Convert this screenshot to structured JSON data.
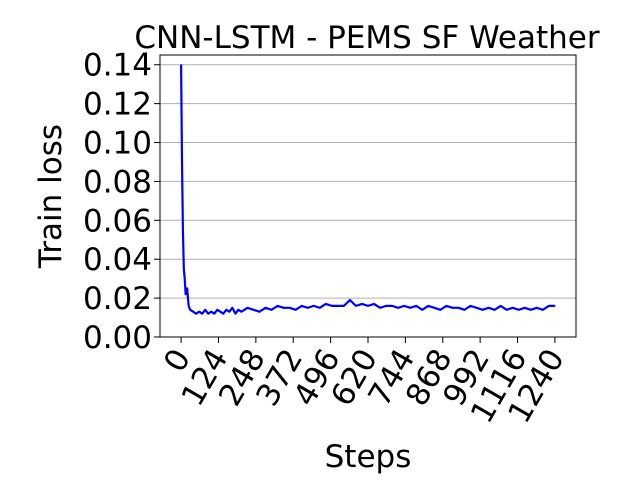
{
  "chart_data": {
    "type": "line",
    "title": "CNN-LSTM - PEMS SF Weather",
    "xlabel": "Steps",
    "ylabel": "Train loss",
    "xlim": [
      -70,
      1310
    ],
    "ylim": [
      0.0,
      0.145
    ],
    "x_ticks": [
      0,
      124,
      248,
      372,
      496,
      620,
      744,
      868,
      992,
      1116,
      1240
    ],
    "x_tick_labels": [
      "0",
      "124",
      "248",
      "372",
      "496",
      "620",
      "744",
      "868",
      "992",
      "1116",
      "1240"
    ],
    "y_ticks": [
      0.0,
      0.02,
      0.04,
      0.06,
      0.08,
      0.1,
      0.12,
      0.14
    ],
    "y_tick_labels": [
      "0.00",
      "0.02",
      "0.04",
      "0.06",
      "0.08",
      "0.10",
      "0.12",
      "0.14"
    ],
    "grid": "horizontal",
    "colors": {
      "line": "#0000ff"
    },
    "series": [
      {
        "color": "#0000ff",
        "x": [
          0,
          3,
          6,
          9,
          12,
          15,
          20,
          25,
          30,
          40,
          50,
          60,
          70,
          80,
          90,
          100,
          110,
          120,
          130,
          140,
          150,
          160,
          170,
          180,
          190,
          200,
          220,
          240,
          260,
          280,
          300,
          320,
          340,
          360,
          380,
          400,
          420,
          440,
          460,
          480,
          500,
          520,
          540,
          560,
          580,
          600,
          620,
          640,
          660,
          680,
          700,
          720,
          740,
          760,
          780,
          800,
          820,
          840,
          860,
          880,
          900,
          920,
          940,
          960,
          980,
          1000,
          1020,
          1040,
          1060,
          1080,
          1100,
          1120,
          1140,
          1160,
          1180,
          1200,
          1220,
          1240
        ],
        "y": [
          0.14,
          0.09,
          0.055,
          0.035,
          0.03,
          0.022,
          0.025,
          0.016,
          0.014,
          0.013,
          0.012,
          0.013,
          0.012,
          0.014,
          0.012,
          0.013,
          0.012,
          0.014,
          0.013,
          0.012,
          0.014,
          0.013,
          0.015,
          0.012,
          0.014,
          0.013,
          0.015,
          0.014,
          0.013,
          0.015,
          0.014,
          0.016,
          0.015,
          0.015,
          0.014,
          0.016,
          0.015,
          0.016,
          0.015,
          0.017,
          0.016,
          0.016,
          0.016,
          0.019,
          0.016,
          0.017,
          0.016,
          0.017,
          0.015,
          0.016,
          0.016,
          0.015,
          0.016,
          0.015,
          0.016,
          0.014,
          0.016,
          0.015,
          0.014,
          0.016,
          0.015,
          0.015,
          0.014,
          0.016,
          0.015,
          0.014,
          0.015,
          0.014,
          0.016,
          0.014,
          0.015,
          0.014,
          0.015,
          0.014,
          0.015,
          0.014,
          0.016,
          0.016
        ]
      }
    ]
  }
}
